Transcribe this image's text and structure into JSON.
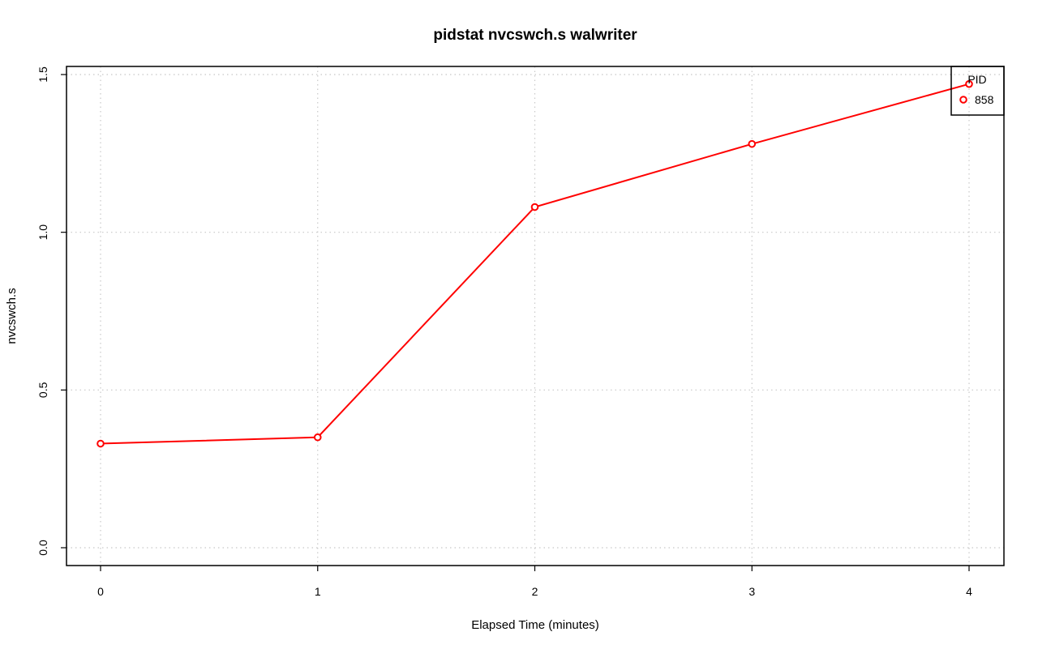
{
  "chart_data": {
    "type": "line",
    "title": "pidstat nvcswch.s walwriter",
    "xlabel": "Elapsed Time (minutes)",
    "ylabel": "nvcswch.s",
    "xlim": [
      0,
      4
    ],
    "ylim": [
      0,
      1.5
    ],
    "x_ticks": [
      "0",
      "1",
      "2",
      "3",
      "4"
    ],
    "y_ticks": [
      "0.0",
      "0.5",
      "1.0",
      "1.5"
    ],
    "grid": true,
    "legend": {
      "title": "PID",
      "placement": "top-right"
    },
    "series": [
      {
        "name": "858",
        "color": "#ff0000",
        "x": [
          0,
          1,
          2,
          3,
          4
        ],
        "y": [
          0.33,
          0.35,
          1.08,
          1.28,
          1.47
        ]
      }
    ]
  }
}
